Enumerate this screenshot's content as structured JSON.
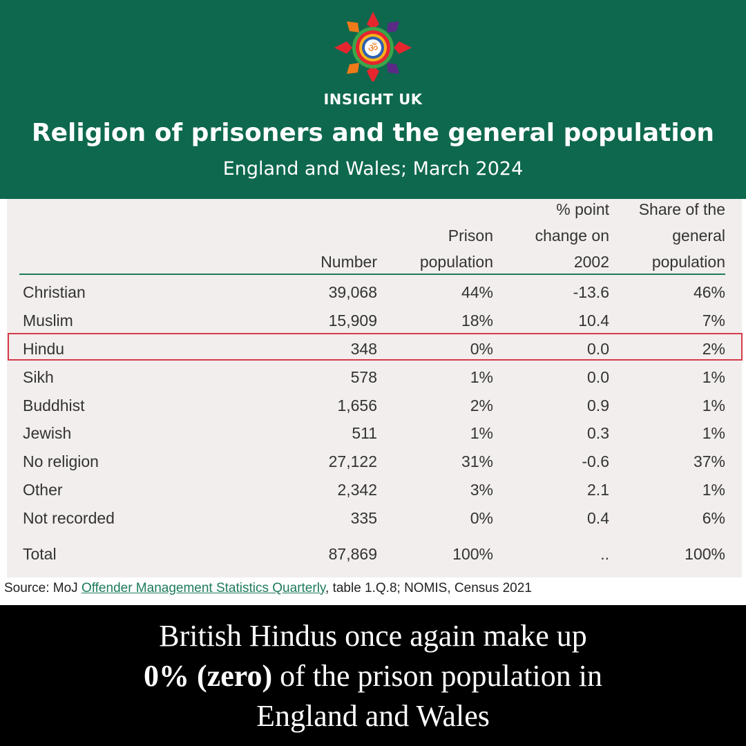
{
  "header": {
    "brand": "INSIGHT UK",
    "logo_symbol": "ॐ",
    "title": "Religion of prisoners and the general population",
    "subtitle": "England and Wales; March 2024",
    "background_color": "#0e684d"
  },
  "table": {
    "columns": {
      "number": [
        "Number"
      ],
      "prison": [
        "Prison",
        "population"
      ],
      "change": [
        "% point",
        "change on",
        "2002"
      ],
      "share": [
        "Share of the",
        "general",
        "population"
      ]
    },
    "rows": [
      {
        "religion": "Christian",
        "number": "39,068",
        "prison": "44%",
        "change": "-13.6",
        "share": "46%"
      },
      {
        "religion": "Muslim",
        "number": "15,909",
        "prison": "18%",
        "change": "10.4",
        "share": "7%"
      },
      {
        "religion": "Hindu",
        "number": "348",
        "prison": "0%",
        "change": "0.0",
        "share": "2%"
      },
      {
        "religion": "Sikh",
        "number": "578",
        "prison": "1%",
        "change": "0.0",
        "share": "1%"
      },
      {
        "religion": "Buddhist",
        "number": "1,656",
        "prison": "2%",
        "change": "0.9",
        "share": "1%"
      },
      {
        "religion": "Jewish",
        "number": "511",
        "prison": "1%",
        "change": "0.3",
        "share": "1%"
      },
      {
        "religion": "No religion",
        "number": "27,122",
        "prison": "31%",
        "change": "-0.6",
        "share": "37%"
      },
      {
        "religion": "Other",
        "number": "2,342",
        "prison": "3%",
        "change": "2.1",
        "share": "1%"
      },
      {
        "religion": "Not recorded",
        "number": "335",
        "prison": "0%",
        "change": "0.4",
        "share": "6%"
      }
    ],
    "total": {
      "religion": "Total",
      "number": "87,869",
      "prison": "100%",
      "change": "..",
      "share": "100%"
    },
    "highlighted_row": "Hindu",
    "highlight_color": "#d63a4a"
  },
  "source": {
    "prefix": "Source:  MoJ ",
    "link_text": "Offender Management Statistics Quarterly",
    "suffix": ", table 1.Q.8; NOMIS, Census 2021"
  },
  "footer": {
    "line1": "British Hindus once again make up",
    "line2_bold": "0% (zero)",
    "line2_rest": " of the prison population in",
    "line3": "England and Wales"
  }
}
